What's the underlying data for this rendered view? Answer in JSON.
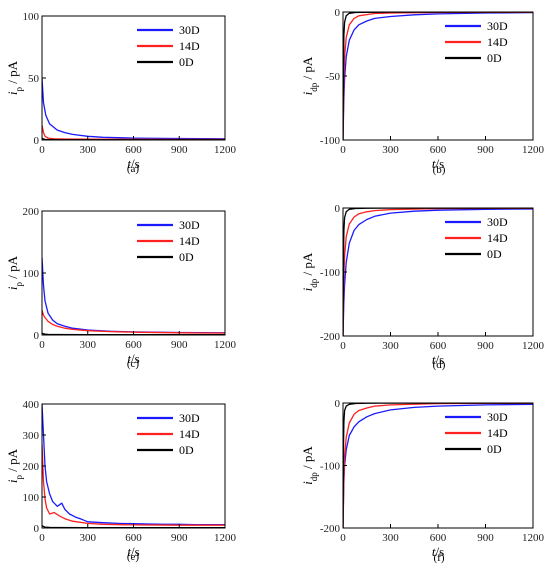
{
  "legend_labels": [
    "30D",
    "14D",
    "0D"
  ],
  "colors": {
    "30D": "#1a1aff",
    "14D": "#ff2020",
    "0D": "#000000"
  },
  "chart_data": [
    {
      "id": "a",
      "type": "line",
      "panel_label": "(a)",
      "xlabel_var": "t",
      "xlabel_unit": "/s",
      "ylabel_var": "i",
      "ylabel_sub": "p",
      "ylabel_unit": " / pA",
      "xlim": [
        0,
        1200
      ],
      "ylim": [
        0,
        100
      ],
      "xticks": [
        0,
        300,
        600,
        900,
        1200
      ],
      "yticks": [
        0,
        50,
        100
      ],
      "legend": "top-right",
      "series": [
        {
          "name": "30D",
          "x": [
            0,
            10,
            25,
            50,
            100,
            150,
            200,
            300,
            400,
            600,
            900,
            1200
          ],
          "y": [
            50,
            30,
            20,
            13,
            8,
            6,
            4.5,
            3,
            2.2,
            1.5,
            1.2,
            1
          ]
        },
        {
          "name": "14D",
          "x": [
            0,
            10,
            20,
            40,
            80,
            150,
            300,
            600,
            900,
            1200
          ],
          "y": [
            12,
            6,
            3,
            1.5,
            1,
            0.8,
            0.7,
            0.6,
            0.5,
            0.5
          ]
        },
        {
          "name": "0D",
          "x": [
            0,
            10,
            20,
            50,
            100,
            300,
            600,
            900,
            1200
          ],
          "y": [
            1.5,
            0.8,
            0.5,
            0.3,
            0.2,
            0.2,
            0.2,
            0.2,
            0.2
          ]
        }
      ]
    },
    {
      "id": "b",
      "type": "line",
      "panel_label": "(b)",
      "xlabel_var": "t",
      "xlabel_unit": "/s",
      "ylabel_var": "i",
      "ylabel_sub": "dp",
      "ylabel_unit": " / pA",
      "xlim": [
        0,
        1200
      ],
      "ylim": [
        -100,
        0
      ],
      "xticks": [
        0,
        300,
        600,
        900,
        1200
      ],
      "yticks": [
        -100,
        -50,
        0
      ],
      "legend": "top-right",
      "series": [
        {
          "name": "30D",
          "x": [
            0,
            5,
            10,
            20,
            40,
            70,
            100,
            150,
            200,
            300,
            450,
            600,
            900,
            1200
          ],
          "y": [
            -100,
            -70,
            -52,
            -35,
            -22,
            -14,
            -10,
            -7,
            -5,
            -3.5,
            -2.2,
            -1.5,
            -0.8,
            -0.5
          ]
        },
        {
          "name": "14D",
          "x": [
            0,
            5,
            10,
            20,
            40,
            70,
            100,
            150,
            200,
            300,
            600,
            900,
            1200
          ],
          "y": [
            -100,
            -55,
            -35,
            -20,
            -10,
            -5,
            -3,
            -2,
            -1.2,
            -0.8,
            -0.4,
            -0.2,
            -0.2
          ]
        },
        {
          "name": "0D",
          "x": [
            0,
            3,
            6,
            10,
            20,
            40,
            80,
            150,
            300,
            600,
            1200
          ],
          "y": [
            -100,
            -40,
            -18,
            -8,
            -3,
            -1,
            -0.4,
            -0.2,
            -0.1,
            -0.1,
            -0.1
          ]
        }
      ]
    },
    {
      "id": "c",
      "type": "line",
      "panel_label": "(c)",
      "xlabel_var": "t",
      "xlabel_unit": "/s",
      "ylabel_var": "i",
      "ylabel_sub": "p",
      "ylabel_unit": " / pA",
      "xlim": [
        0,
        1200
      ],
      "ylim": [
        0,
        200
      ],
      "xticks": [
        0,
        300,
        600,
        900,
        1200
      ],
      "yticks": [
        0,
        100,
        200
      ],
      "legend": "top-right",
      "series": [
        {
          "name": "30D",
          "x": [
            0,
            10,
            20,
            40,
            70,
            100,
            150,
            200,
            300,
            450,
            600,
            900,
            1200
          ],
          "y": [
            125,
            80,
            55,
            35,
            24,
            18,
            14,
            11,
            8,
            6,
            5,
            4,
            3.5
          ]
        },
        {
          "name": "14D",
          "x": [
            0,
            10,
            20,
            40,
            70,
            100,
            150,
            200,
            300,
            450,
            600,
            900,
            1200
          ],
          "y": [
            40,
            32,
            28,
            22,
            17,
            14,
            11,
            9,
            7,
            5.5,
            4.5,
            3.5,
            3
          ]
        },
        {
          "name": "0D",
          "x": [
            0,
            10,
            20,
            40,
            100,
            300,
            600,
            1200
          ],
          "y": [
            3,
            2,
            1.5,
            1,
            0.8,
            0.6,
            0.5,
            0.5
          ]
        }
      ]
    },
    {
      "id": "d",
      "type": "line",
      "panel_label": "(d)",
      "xlabel_var": "t",
      "xlabel_unit": "/s",
      "ylabel_var": "i",
      "ylabel_sub": "dp",
      "ylabel_unit": " / pA",
      "xlim": [
        0,
        1200
      ],
      "ylim": [
        -200,
        0
      ],
      "xticks": [
        0,
        300,
        600,
        900,
        1200
      ],
      "yticks": [
        -200,
        -100,
        0
      ],
      "legend": "top-right",
      "series": [
        {
          "name": "30D",
          "x": [
            0,
            5,
            10,
            20,
            40,
            70,
            100,
            150,
            200,
            300,
            450,
            600,
            900,
            1200
          ],
          "y": [
            -200,
            -150,
            -120,
            -85,
            -55,
            -35,
            -26,
            -18,
            -13,
            -8,
            -5,
            -3.5,
            -2,
            -1.5
          ]
        },
        {
          "name": "14D",
          "x": [
            0,
            5,
            10,
            20,
            40,
            70,
            100,
            150,
            200,
            300,
            600,
            900,
            1200
          ],
          "y": [
            -200,
            -110,
            -75,
            -45,
            -25,
            -14,
            -9,
            -6,
            -4,
            -2.5,
            -1,
            -0.6,
            -0.4
          ]
        },
        {
          "name": "0D",
          "x": [
            0,
            3,
            6,
            10,
            20,
            40,
            80,
            150,
            300,
            600,
            1200
          ],
          "y": [
            -200,
            -80,
            -35,
            -15,
            -6,
            -2,
            -0.8,
            -0.3,
            -0.2,
            -0.1,
            -0.1
          ]
        }
      ]
    },
    {
      "id": "e",
      "type": "line",
      "panel_label": "(e)",
      "xlabel_var": "t",
      "xlabel_unit": "/s",
      "ylabel_var": "i",
      "ylabel_sub": "p",
      "ylabel_unit": " / pA",
      "xlim": [
        0,
        1200
      ],
      "ylim": [
        0,
        400
      ],
      "xticks": [
        0,
        300,
        600,
        900,
        1200
      ],
      "yticks": [
        0,
        100,
        200,
        300,
        400
      ],
      "legend": "top-right",
      "series": [
        {
          "name": "30D",
          "x": [
            0,
            10,
            20,
            30,
            50,
            70,
            100,
            130,
            150,
            180,
            220,
            260,
            300,
            400,
            500,
            600,
            700,
            800,
            900,
            1000,
            1100,
            1200
          ],
          "y": [
            400,
            300,
            200,
            150,
            110,
            85,
            70,
            80,
            60,
            45,
            35,
            28,
            20,
            17,
            15,
            14,
            13,
            12,
            12,
            11,
            11,
            11
          ]
        },
        {
          "name": "14D",
          "x": [
            0,
            10,
            20,
            30,
            50,
            80,
            110,
            150,
            200,
            300,
            400,
            600,
            900,
            1200
          ],
          "y": [
            270,
            150,
            95,
            65,
            45,
            50,
            40,
            30,
            22,
            15,
            12,
            10,
            9,
            9
          ]
        },
        {
          "name": "0D",
          "x": [
            0,
            10,
            20,
            50,
            100,
            300,
            600,
            1200
          ],
          "y": [
            8,
            5,
            3,
            2,
            1.5,
            1,
            1,
            1
          ]
        }
      ]
    },
    {
      "id": "f",
      "type": "line",
      "panel_label": "(f)",
      "xlabel_var": "t",
      "xlabel_unit": "/s",
      "ylabel_var": "i",
      "ylabel_sub": "dp",
      "ylabel_unit": " / pA",
      "xlim": [
        0,
        1200
      ],
      "ylim": [
        -200,
        0
      ],
      "xticks": [
        0,
        300,
        600,
        900,
        1200
      ],
      "yticks": [
        -200,
        -100,
        0
      ],
      "legend": "top-right",
      "series": [
        {
          "name": "30D",
          "x": [
            0,
            5,
            10,
            20,
            40,
            70,
            100,
            150,
            200,
            300,
            450,
            600,
            900,
            1200
          ],
          "y": [
            -200,
            -130,
            -100,
            -75,
            -52,
            -38,
            -30,
            -22,
            -17,
            -11,
            -7,
            -5,
            -3,
            -2
          ]
        },
        {
          "name": "14D",
          "x": [
            0,
            5,
            10,
            20,
            40,
            70,
            100,
            150,
            200,
            300,
            600,
            900,
            1200
          ],
          "y": [
            -200,
            -120,
            -85,
            -55,
            -32,
            -18,
            -12,
            -8,
            -5,
            -3,
            -1,
            -0.6,
            -0.4
          ]
        },
        {
          "name": "0D",
          "x": [
            0,
            3,
            6,
            10,
            20,
            40,
            80,
            150,
            300,
            600,
            1200
          ],
          "y": [
            -200,
            -70,
            -30,
            -12,
            -5,
            -2,
            -0.8,
            -0.3,
            -0.2,
            -0.1,
            -0.1
          ]
        }
      ]
    }
  ]
}
